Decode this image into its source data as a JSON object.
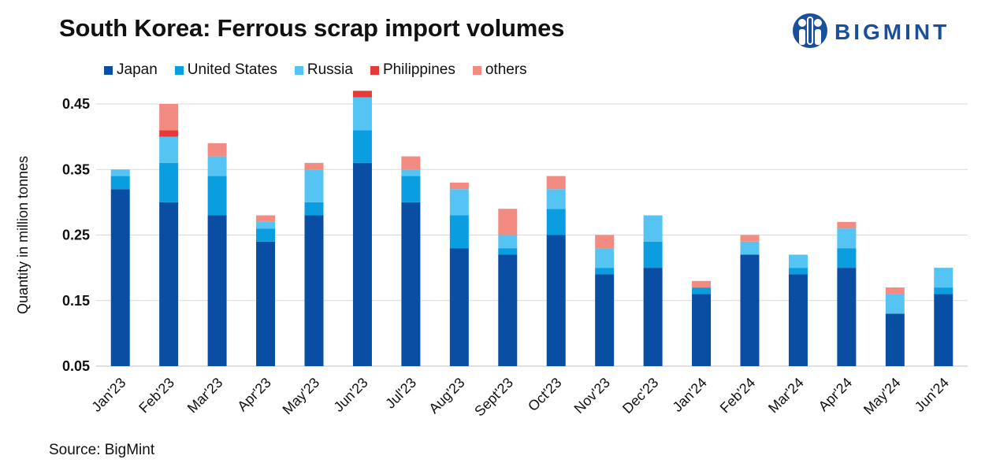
{
  "title": "South Korea: Ferrous scrap import volumes",
  "logo": {
    "text": "BIGMINT",
    "color": "#1a4f9c"
  },
  "source": "Source: BigMint",
  "chart_data": {
    "type": "bar",
    "stacked": true,
    "title": "South Korea: Ferrous scrap import volumes",
    "ylabel": "Quantity in million tonnes",
    "xlabel": "",
    "ylim": [
      0.05,
      0.45
    ],
    "yticks": [
      "0.05",
      "0.15",
      "0.25",
      "0.35",
      "0.45"
    ],
    "grid": true,
    "legend_position": "top-left",
    "categories": [
      "Jan'23",
      "Feb'23",
      "Mar'23",
      "Apr'23",
      "May'23",
      "Jun'23",
      "Jul'23",
      "Aug'23",
      "Sept'23",
      "Oct'23",
      "Nov'23",
      "Dec'23",
      "Jan'24",
      "Feb'24",
      "Mar'24",
      "Apr'24",
      "May'24",
      "Jun'24"
    ],
    "series": [
      {
        "name": "Japan",
        "color": "#0a4ea3",
        "values": [
          0.27,
          0.25,
          0.23,
          0.19,
          0.23,
          0.31,
          0.25,
          0.18,
          0.17,
          0.2,
          0.14,
          0.15,
          0.11,
          0.17,
          0.14,
          0.15,
          0.08,
          0.11
        ]
      },
      {
        "name": "United States",
        "color": "#0a9ee0",
        "values": [
          0.02,
          0.06,
          0.06,
          0.02,
          0.02,
          0.05,
          0.04,
          0.05,
          0.01,
          0.04,
          0.01,
          0.04,
          0.01,
          0.0,
          0.01,
          0.03,
          0.0,
          0.01
        ]
      },
      {
        "name": "Russia",
        "color": "#55c4f2",
        "values": [
          0.01,
          0.04,
          0.03,
          0.01,
          0.05,
          0.05,
          0.01,
          0.04,
          0.02,
          0.03,
          0.03,
          0.04,
          0.0,
          0.02,
          0.02,
          0.03,
          0.03,
          0.03
        ]
      },
      {
        "name": "Philippines",
        "color": "#e43a3a",
        "values": [
          0.0,
          0.01,
          0.0,
          0.0,
          0.0,
          0.01,
          0.0,
          0.0,
          0.0,
          0.0,
          0.0,
          0.0,
          0.0,
          0.0,
          0.0,
          0.0,
          0.0,
          0.0
        ]
      },
      {
        "name": "others",
        "color": "#f28b82",
        "values": [
          0.0,
          0.04,
          0.02,
          0.01,
          0.01,
          0.0,
          0.02,
          0.01,
          0.04,
          0.02,
          0.02,
          0.0,
          0.01,
          0.01,
          0.0,
          0.01,
          0.01,
          0.0
        ]
      }
    ]
  }
}
